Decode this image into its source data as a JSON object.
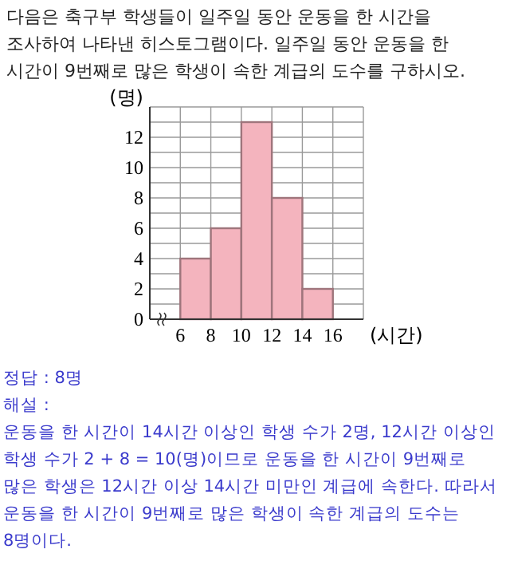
{
  "chart_data": {
    "type": "histogram",
    "title": "다음은 축구부 학생들이 일주일 동안 운동을 한 시간을 조사하여 나타낸 히스토그램이다. 일주일 동안 운동을 한 시간이 9번째로 많은 학생이 속한 계급의 도수를 구하시오.",
    "xlabel": "(시간)",
    "ylabel": "(명)",
    "bins": [
      6,
      8,
      10,
      12,
      14,
      16
    ],
    "values": [
      4,
      6,
      13,
      8,
      2
    ],
    "color": "#f4b4be",
    "xlim": [
      4,
      18
    ],
    "xticks": [
      {
        "value": 4,
        "label": null
      },
      6,
      8,
      10,
      12,
      14,
      16,
      {
        "value": 18,
        "label": null
      }
    ],
    "ylim": [
      0,
      14
    ],
    "yticks": [
      0,
      {
        "value": 1,
        "label": null
      },
      2,
      {
        "value": 3,
        "label": null
      },
      4,
      {
        "value": 5,
        "label": null
      },
      6,
      {
        "value": 7,
        "label": null
      },
      8,
      {
        "value": 9,
        "label": null
      },
      10,
      {
        "value": 11,
        "label": null
      },
      12,
      {
        "value": 13,
        "label": null
      },
      {
        "value": 14,
        "label": null
      }
    ],
    "grid": true,
    "annotations": [
      "정답 : 8명",
      "해설 :",
      "운동을 한 시간이 14시간 이상인 학생 수가 2명, 12시간 이상인 학생 수가 2 + 8 = 10(명)이므로 운동을 한 시간이 9번째로 많은 학생은 12시간 이상 14시간 미만인 계급에 속한다. 따라서 운동을 한 시간이 9번째로 많은 학생이 속한 계급의 도수는 8명이다."
    ]
  }
}
